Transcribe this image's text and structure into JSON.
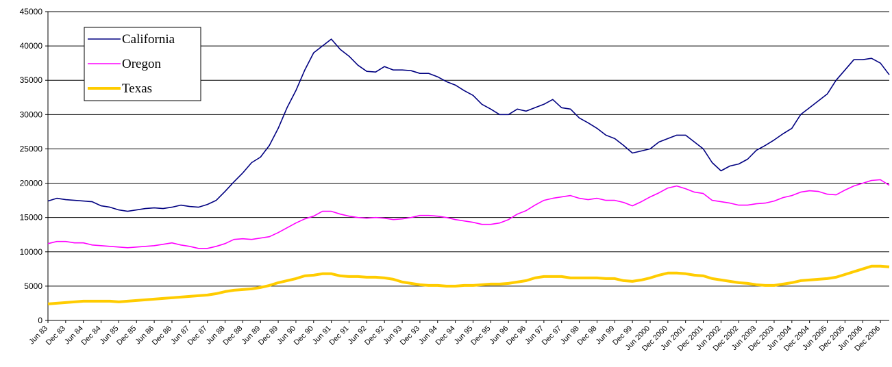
{
  "chart_data": {
    "type": "line",
    "categories": [
      "Jun 83",
      null,
      "Dec 83",
      null,
      "Jun 84",
      null,
      "Dec 84",
      null,
      "Jun 85",
      null,
      "Dec 85",
      null,
      "Jun 86",
      null,
      "Dec 86",
      null,
      "Jun 87",
      null,
      "Dec 87",
      null,
      "Jun 88",
      null,
      "Dec 88",
      null,
      "Jun 89",
      null,
      "Dec 89",
      null,
      "Jun 90",
      null,
      "Dec 90",
      null,
      "Jun 91",
      null,
      "Dec 91",
      null,
      "Jun 92",
      null,
      "Dec 92",
      null,
      "Jun 93",
      null,
      "Dec 93",
      null,
      "Jun 94",
      null,
      "Dec 94",
      null,
      "Jun 95",
      null,
      "Dec 95",
      null,
      "Jun 96",
      null,
      "Dec 96",
      null,
      "Jun 97",
      null,
      "Dec 97",
      null,
      "Jun 98",
      null,
      "Dec 98",
      null,
      "Jun 99",
      null,
      "Dec 99",
      null,
      "Jun 2000",
      null,
      "Dec 2000",
      null,
      "Jun 2001",
      null,
      "Dec 2001",
      null,
      "Jun 2002",
      null,
      "Dec 2002",
      null,
      "Jun 2003",
      null,
      "Dec 2003",
      null,
      "Jun 2004",
      null,
      "Dec 2004",
      null,
      "Jun 2005",
      null,
      "Dec 2005",
      null,
      "Jun 2006",
      null,
      "Dec 2006",
      null
    ],
    "series": [
      {
        "name": "California",
        "color": "#000080",
        "values": [
          17400,
          17800,
          17600,
          17500,
          17400,
          17300,
          16700,
          16500,
          16100,
          15900,
          16100,
          16300,
          16400,
          16300,
          16500,
          16800,
          16600,
          16500,
          16900,
          17500,
          18800,
          20200,
          21500,
          23000,
          23800,
          25500,
          28000,
          31000,
          33500,
          36500,
          39000,
          40000,
          41000,
          39500,
          38500,
          37200,
          36300,
          36200,
          37000,
          36500,
          36500,
          36400,
          36000,
          36000,
          35500,
          34800,
          34300,
          33500,
          32800,
          31500,
          30800,
          30000,
          30000,
          30800,
          30500,
          31000,
          31500,
          32200,
          31000,
          30800,
          29500,
          28800,
          28000,
          27000,
          26500,
          25500,
          24400,
          24700,
          25000,
          26000,
          26500,
          27000,
          27000,
          26000,
          25000,
          23000,
          21800,
          22500,
          22800,
          23500,
          24800,
          25500,
          26300,
          27200,
          28000,
          30000,
          31000,
          32000,
          33000,
          35000,
          36500,
          38000,
          38000,
          38200,
          37500,
          35800
        ]
      },
      {
        "name": "Oregon",
        "color": "#ff00ff",
        "values": [
          11200,
          11500,
          11500,
          11300,
          11300,
          11000,
          10900,
          10800,
          10700,
          10600,
          10700,
          10800,
          10900,
          11100,
          11300,
          11000,
          10800,
          10500,
          10500,
          10800,
          11200,
          11800,
          11900,
          11800,
          12000,
          12200,
          12800,
          13500,
          14200,
          14800,
          15200,
          15900,
          15900,
          15500,
          15200,
          15000,
          14900,
          15000,
          14900,
          14700,
          14800,
          15000,
          15300,
          15300,
          15200,
          15000,
          14700,
          14500,
          14300,
          14000,
          14000,
          14200,
          14700,
          15500,
          16000,
          16800,
          17500,
          17800,
          18000,
          18200,
          17800,
          17600,
          17800,
          17500,
          17500,
          17200,
          16700,
          17300,
          18000,
          18600,
          19300,
          19600,
          19200,
          18700,
          18500,
          17500,
          17300,
          17100,
          16800,
          16800,
          17000,
          17100,
          17400,
          17900,
          18200,
          18700,
          18900,
          18800,
          18400,
          18300,
          19000,
          19600,
          20000,
          20400,
          20500,
          19700
        ]
      },
      {
        "name": "Texas",
        "color": "#ffcc00",
        "values": [
          2400,
          2500,
          2600,
          2700,
          2800,
          2800,
          2800,
          2800,
          2700,
          2800,
          2900,
          3000,
          3100,
          3200,
          3300,
          3400,
          3500,
          3600,
          3700,
          3900,
          4200,
          4400,
          4500,
          4600,
          4800,
          5100,
          5500,
          5800,
          6100,
          6500,
          6600,
          6800,
          6800,
          6500,
          6400,
          6400,
          6300,
          6300,
          6200,
          6000,
          5600,
          5400,
          5200,
          5100,
          5100,
          5000,
          5000,
          5100,
          5100,
          5200,
          5300,
          5300,
          5400,
          5600,
          5800,
          6200,
          6400,
          6400,
          6400,
          6200,
          6200,
          6200,
          6200,
          6100,
          6100,
          5800,
          5700,
          5900,
          6200,
          6600,
          6900,
          6900,
          6800,
          6600,
          6500,
          6100,
          5900,
          5700,
          5500,
          5400,
          5200,
          5100,
          5100,
          5300,
          5500,
          5800,
          5900,
          6000,
          6100,
          6300,
          6700,
          7100,
          7500,
          7900,
          7900,
          7800
        ]
      }
    ],
    "ylim": [
      0,
      45000
    ],
    "yticks": [
      0,
      5000,
      10000,
      15000,
      20000,
      25000,
      30000,
      35000,
      40000,
      45000
    ],
    "grid": true,
    "legend": "upper-left"
  }
}
